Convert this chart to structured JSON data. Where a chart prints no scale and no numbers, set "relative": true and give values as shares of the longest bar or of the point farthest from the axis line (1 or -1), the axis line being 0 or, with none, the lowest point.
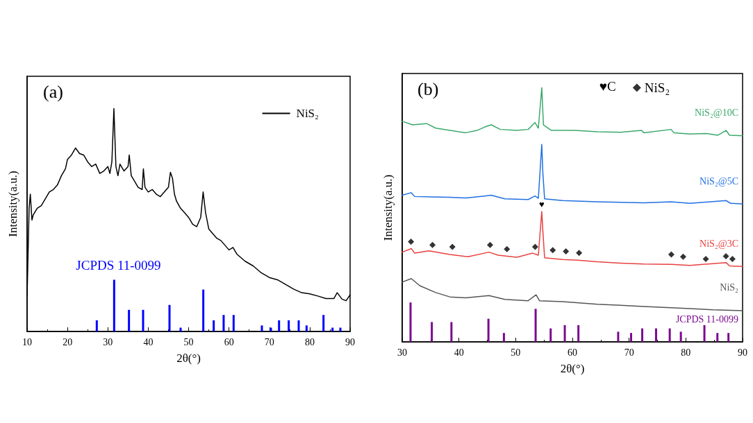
{
  "chart_data": [
    {
      "type": "line",
      "title": "(a)",
      "xlabel": "2θ(°)",
      "ylabel": "Intensity(a.u.)",
      "relative": true,
      "xlim": [
        10,
        90
      ],
      "xticks": [
        10,
        20,
        30,
        40,
        50,
        60,
        70,
        80,
        90
      ],
      "legend": "top right",
      "marker": "none",
      "line_style": "solid",
      "series": [
        {
          "name": "NiS₂",
          "color": "#000000",
          "x": [
            10,
            10.5,
            10.8,
            11.2,
            11.5,
            12.5,
            13.5,
            14.5,
            15.5,
            16.5,
            17.5,
            18.5,
            19.5,
            20,
            21,
            22,
            23,
            24,
            25,
            26,
            27,
            28,
            29,
            30,
            30.5,
            31,
            31.5,
            32,
            32.5,
            33,
            34,
            35,
            35.3,
            35.8,
            36.5,
            37.5,
            38.5,
            38.8,
            39.2,
            40,
            41,
            42,
            43,
            44,
            45,
            45.5,
            46,
            46.5,
            47,
            48,
            49,
            50,
            51,
            52,
            53,
            53.6,
            54.2,
            55,
            56,
            57,
            58,
            59,
            60,
            61,
            62,
            64,
            66,
            68,
            70,
            72,
            74,
            76,
            78,
            80,
            82,
            84,
            86,
            86.8,
            88,
            89,
            90
          ],
          "values": [
            0.159,
            0.553,
            0.616,
            0.5,
            0.522,
            0.553,
            0.564,
            0.595,
            0.626,
            0.637,
            0.657,
            0.699,
            0.73,
            0.772,
            0.792,
            0.823,
            0.798,
            0.792,
            0.761,
            0.74,
            0.751,
            0.709,
            0.72,
            0.74,
            0.709,
            0.761,
            1.0,
            0.74,
            0.699,
            0.751,
            0.72,
            0.74,
            0.792,
            0.699,
            0.678,
            0.647,
            0.637,
            0.73,
            0.647,
            0.626,
            0.637,
            0.616,
            0.605,
            0.626,
            0.647,
            0.714,
            0.688,
            0.616,
            0.585,
            0.553,
            0.533,
            0.512,
            0.481,
            0.47,
            0.512,
            0.626,
            0.533,
            0.46,
            0.439,
            0.418,
            0.408,
            0.387,
            0.366,
            0.377,
            0.346,
            0.315,
            0.294,
            0.263,
            0.242,
            0.232,
            0.211,
            0.19,
            0.174,
            0.169,
            0.159,
            0.148,
            0.148,
            0.174,
            0.145,
            0.138,
            0.164
          ]
        },
        {
          "name": "JCPDS 11-0099",
          "type": "bar",
          "color": "#0000ff",
          "x": [
            27.26,
            31.56,
            35.23,
            38.73,
            45.27,
            48.02,
            53.64,
            56.22,
            58.68,
            61.15,
            68.15,
            70.39,
            72.4,
            74.8,
            77.27,
            79.22,
            83.41,
            85.64,
            87.59
          ],
          "values": [
            0.05,
            0.232,
            0.097,
            0.097,
            0.119,
            0.017,
            0.188,
            0.05,
            0.074,
            0.074,
            0.027,
            0.017,
            0.05,
            0.05,
            0.05,
            0.027,
            0.074,
            0.017,
            0.017
          ]
        }
      ]
    },
    {
      "type": "line",
      "title": "(b)",
      "xlabel": "2θ(°)",
      "ylabel": "Intensity(a.u.)",
      "relative": true,
      "xlim": [
        30,
        90
      ],
      "xticks": [
        30,
        40,
        50,
        60,
        70,
        80,
        90
      ],
      "marker": "none",
      "line_style": "solid",
      "legend": "top right",
      "annotations": [
        "♥C",
        {
          "text": "♥",
          "x": 54.6,
          "y": 0.513
        }
      ],
      "series": [
        {
          "name": "NiS₂",
          "type": "scatter",
          "marker": "diamond",
          "color": "#000000",
          "x": [
            31.55,
            35.34,
            38.85,
            45.49,
            48.46,
            53.44,
            56.54,
            58.86,
            61.18,
            77.44,
            79.52,
            83.52,
            87.07,
            88.21
          ],
          "values": [
            0.394,
            0.381,
            0.374,
            0.381,
            0.365,
            0.374,
            0.361,
            0.356,
            0.35,
            0.344,
            0.335,
            0.326,
            0.337,
            0.326
          ]
        },
        {
          "name": "NiS₂@10C",
          "color": "#3aa86b",
          "x": [
            30,
            31.8,
            34.3,
            35.9,
            38.4,
            41.2,
            43.2,
            44.5,
            45.7,
            47.3,
            50.2,
            52.2,
            53.4,
            54,
            54.6,
            54.9,
            56.3,
            60.4,
            64.4,
            68.5,
            72.2,
            72.6,
            77.4,
            77.9,
            80.7,
            83.6,
            85.6,
            87.1,
            87.7,
            90
          ],
          "values": [
            0.868,
            0.854,
            0.859,
            0.841,
            0.832,
            0.823,
            0.832,
            0.845,
            0.854,
            0.836,
            0.832,
            0.836,
            0.863,
            0.841,
            1.0,
            0.854,
            0.832,
            0.832,
            0.827,
            0.825,
            0.832,
            0.823,
            0.836,
            0.823,
            0.818,
            0.82,
            0.813,
            0.832,
            0.813,
            0.811
          ]
        },
        {
          "name": "NiS₂@5C",
          "color": "#1f6fe0",
          "x": [
            30,
            31.6,
            32.2,
            35.3,
            38.4,
            41.2,
            44.5,
            45.7,
            48.1,
            52.2,
            53.4,
            54,
            54.6,
            54.8,
            55.1,
            58.3,
            64.4,
            72.6,
            77.4,
            80.7,
            87.1,
            87.9,
            90
          ],
          "values": [
            0.577,
            0.587,
            0.572,
            0.57,
            0.569,
            0.566,
            0.574,
            0.577,
            0.563,
            0.56,
            0.574,
            0.565,
            0.777,
            0.663,
            0.563,
            0.556,
            0.551,
            0.547,
            0.551,
            0.545,
            0.556,
            0.545,
            0.543
          ]
        },
        {
          "name": "NiS₂@3C",
          "color": "#e8403f",
          "x": [
            30,
            31.6,
            32.2,
            34.7,
            38.4,
            41.6,
            45.3,
            46.9,
            50.2,
            53,
            54,
            54.6,
            54.8,
            55.1,
            58.3,
            61,
            64.4,
            68.5,
            72.6,
            77.5,
            80.7,
            87.1,
            87.7,
            90
          ],
          "values": [
            0.353,
            0.367,
            0.349,
            0.358,
            0.344,
            0.335,
            0.353,
            0.341,
            0.333,
            0.349,
            0.341,
            0.513,
            0.435,
            0.331,
            0.324,
            0.321,
            0.315,
            0.31,
            0.306,
            0.305,
            0.301,
            0.312,
            0.299,
            0.297
          ]
        },
        {
          "name": "NiS₂",
          "color": "#555555",
          "x": [
            30,
            31.6,
            33.1,
            35.9,
            38.4,
            41.2,
            45.3,
            48.1,
            52.2,
            53.6,
            54.2,
            58.3,
            64.4,
            68.5,
            72.6,
            76.7,
            80.7,
            84.8,
            90
          ],
          "values": [
            0.235,
            0.249,
            0.221,
            0.194,
            0.177,
            0.173,
            0.182,
            0.167,
            0.162,
            0.185,
            0.162,
            0.158,
            0.148,
            0.144,
            0.139,
            0.135,
            0.131,
            0.126,
            0.123
          ]
        },
        {
          "name": "JCPDS 11-0099",
          "type": "bar",
          "color": "#7b0a8f",
          "x": [
            31.47,
            35.22,
            38.68,
            45.2,
            47.93,
            53.52,
            56.17,
            58.66,
            61.06,
            68.07,
            70.35,
            72.31,
            74.75,
            77.16,
            79.12,
            83.27,
            85.56,
            87.51
          ],
          "values": [
            0.155,
            0.078,
            0.078,
            0.091,
            0.035,
            0.13,
            0.053,
            0.066,
            0.066,
            0.04,
            0.035,
            0.053,
            0.053,
            0.053,
            0.04,
            0.066,
            0.035,
            0.035
          ]
        }
      ]
    }
  ]
}
